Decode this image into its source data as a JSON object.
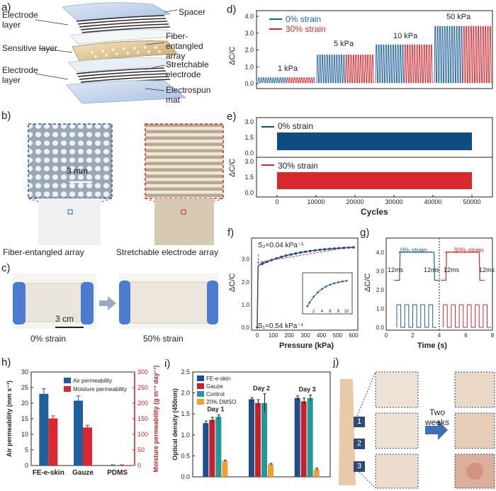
{
  "panels": {
    "a": "a)",
    "b": "b)",
    "c": "c)",
    "d": "d)",
    "e": "e)",
    "f": "f)",
    "g": "g)",
    "h": "h)",
    "i": "i)",
    "j": "j)"
  },
  "a": {
    "electrode_top": "Electrode layer",
    "sensitive": "Sensitive layer",
    "electrode_bottom": "Electrode layer",
    "spacer": "Spacer",
    "fiber_array": "Fiber-entangled array",
    "stretch_electrode": "Stretchable electrode",
    "electrospun": "Electrospun mat"
  },
  "b": {
    "scale": "3 mm",
    "left_caption": "Fiber-entangled array",
    "right_caption": "Stretchable electrode array"
  },
  "c": {
    "scale": "3 cm",
    "left_caption": "0% strain",
    "right_caption": "50% strain"
  },
  "d": {
    "ylabel": "ΔC/C",
    "legend": [
      "0% strain",
      "30% strain"
    ],
    "annotations": [
      "1 kPa",
      "5 kPa",
      "10 kPa",
      "50 kPa"
    ],
    "yticks": [
      "0.0",
      "1.0",
      "2.0",
      "3.0",
      "4.0"
    ],
    "colors": {
      "blue": "#1f5f9e",
      "red": "#d9282e"
    }
  },
  "e": {
    "ylabel": "ΔC/C",
    "xlabel": "Cycles",
    "legend_top": "0% strain",
    "legend_bottom": "30% strain",
    "xticks": [
      "0",
      "10000",
      "20000",
      "30000",
      "40000",
      "50000"
    ],
    "yticks_top": [
      "0.0",
      "1.5",
      "3.0"
    ],
    "yticks_bottom": [
      "0.0",
      "1.5",
      "3.0"
    ],
    "colors": {
      "blue": "#0f4c81",
      "red": "#d9282e"
    }
  },
  "f": {
    "ylabel": "ΔC/C",
    "xlabel": "Pressure (kPa)",
    "s1": "S₁=0.54 kPa⁻¹",
    "s2": "S₂=0.04 kPa⁻¹",
    "xticks": [
      "0",
      "100",
      "200",
      "300",
      "400",
      "500",
      "600"
    ],
    "yticks": [
      "0.0",
      "1.0",
      "2.0",
      "3.0"
    ],
    "inset_xticks": [
      "2",
      "4",
      "6",
      "8",
      "10"
    ]
  },
  "g": {
    "ylabel": "ΔC/C",
    "xlabel": "Time (s)",
    "strain_blue": "0% strain",
    "strain_red": "30% strain",
    "ms": "12ms",
    "xticks": [
      "0",
      "2",
      "4",
      "6",
      "8"
    ],
    "yticks": [
      "0.0",
      "1.0",
      "2.0",
      "3.0",
      "4.0"
    ]
  },
  "chart_data": [
    {
      "id": "h",
      "type": "bar",
      "categories": [
        "FE-e-skin",
        "Gauze",
        "PDMS"
      ],
      "series": [
        {
          "name": "Air permeability",
          "axis": "left",
          "values": [
            23.0,
            20.8,
            0.1
          ],
          "errors": [
            1.6,
            1.5,
            0.1
          ],
          "color": "#1f5f9e"
        },
        {
          "name": "Moisture permeability",
          "axis": "right",
          "values": [
            151,
            122,
            1
          ],
          "errors": [
            8,
            7,
            1
          ],
          "color": "#d9282e"
        }
      ],
      "ylabel": "Air permeability (mm s⁻¹)",
      "y2label": "Moisture permeability (g m⁻² day⁻¹)",
      "ylim": [
        0,
        30
      ],
      "y2lim": [
        0,
        300
      ],
      "yticks": [
        "0",
        "5",
        "10",
        "15",
        "20",
        "25",
        "30"
      ],
      "y2ticks": [
        "0",
        "50",
        "100",
        "150",
        "200",
        "250",
        "300"
      ]
    },
    {
      "id": "i",
      "type": "bar",
      "categories": [
        "Day 1",
        "Day 2",
        "Day 3"
      ],
      "series": [
        {
          "name": "FE-e-skin",
          "values": [
            1.28,
            1.85,
            1.88
          ],
          "errors": [
            0.05,
            0.04,
            0.05
          ],
          "color": "#1f4e8c"
        },
        {
          "name": "Gauze",
          "values": [
            1.36,
            1.76,
            1.8
          ],
          "errors": [
            0.06,
            0.08,
            0.08
          ],
          "color": "#c8202a"
        },
        {
          "name": "Control",
          "values": [
            1.43,
            1.76,
            1.88
          ],
          "errors": [
            0.05,
            0.22,
            0.07
          ],
          "color": "#22989a"
        },
        {
          "name": "20% DMSO",
          "values": [
            0.38,
            0.3,
            0.18
          ],
          "errors": [
            0.02,
            0.02,
            0.03
          ],
          "color": "#f0a030"
        }
      ],
      "ylabel": "Optical density (450nm)",
      "ylim": [
        0,
        2.5
      ],
      "yticks": [
        "0.0",
        "0.5",
        "1.0",
        "1.5",
        "2.0",
        "2.5"
      ]
    }
  ],
  "j": {
    "labels": [
      "1",
      "2",
      "3"
    ],
    "arrow_text": "Two weeks"
  }
}
